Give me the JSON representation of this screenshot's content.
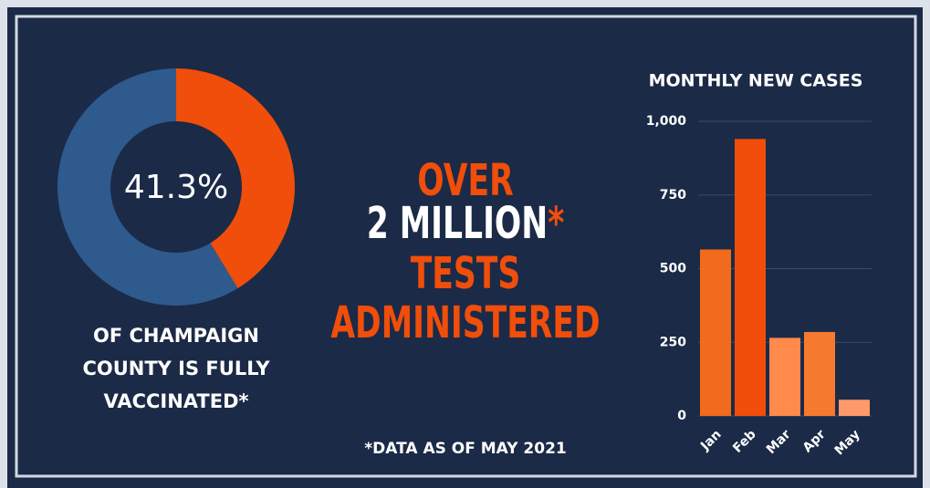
{
  "chart_data": [
    {
      "type": "donut",
      "values": [
        41.3,
        58.7
      ],
      "colors": [
        "#f04e0a",
        "#2e5a8e"
      ],
      "value_labels": [
        "41.3%",
        null
      ],
      "caption": [
        "OF CHAMPAIGN",
        "COUNTY IS FULLY",
        "VACCINATED*"
      ]
    },
    {
      "type": "bar",
      "title": "MONTHLY NEW CASES",
      "categories": [
        "Jan",
        "Feb",
        "Mar",
        "Apr",
        "May"
      ],
      "values": [
        565,
        940,
        265,
        285,
        55
      ],
      "colors": [
        "#f26a1b",
        "#f04e0a",
        "#ff8a4c",
        "#f57a2f",
        "#ff9a6a"
      ],
      "ylim": [
        0,
        1000
      ],
      "yticks": [
        0,
        250,
        500,
        750,
        {
          "value": 1000,
          "label": "1,000"
        }
      ],
      "grid": true
    }
  ],
  "headline": {
    "lines": [
      [
        "OVER"
      ],
      [
        "2 MILLION",
        "*"
      ],
      [
        "TESTS"
      ],
      [
        "ADMINISTERED"
      ]
    ]
  },
  "footnote": "*DATA AS OF MAY 2021"
}
